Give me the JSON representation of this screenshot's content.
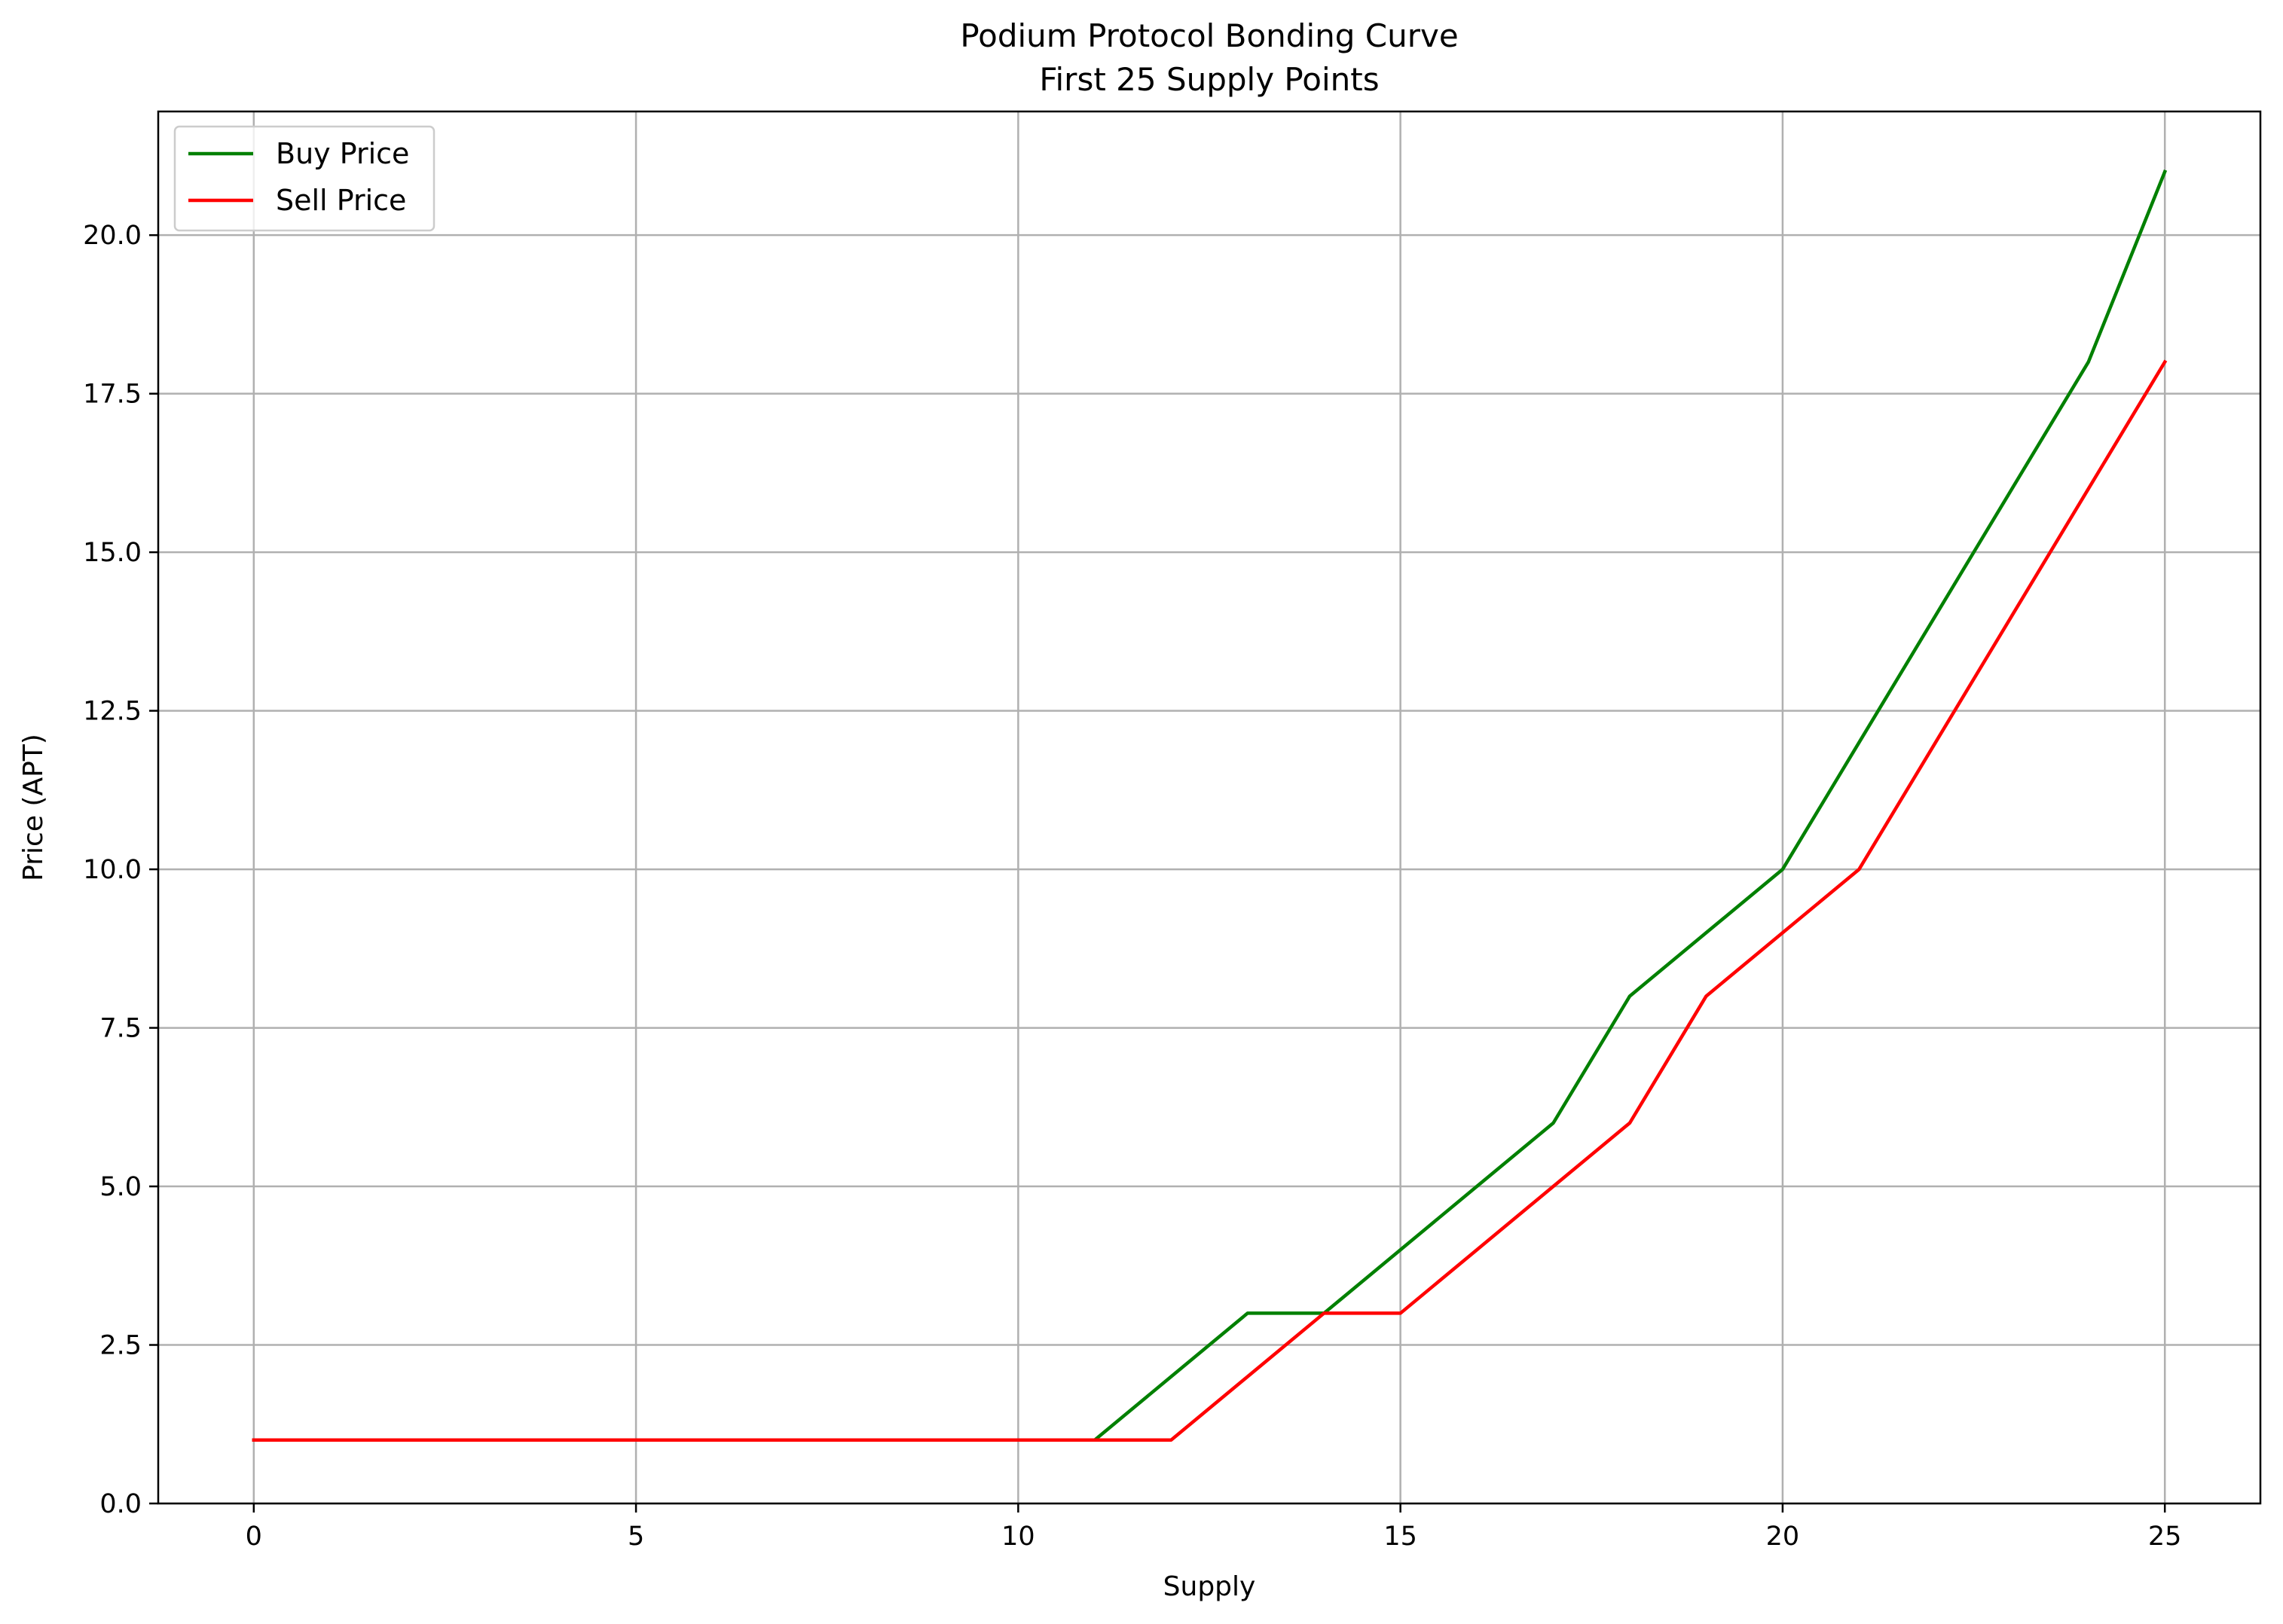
{
  "chart_data": {
    "type": "line",
    "title": "Podium Protocol Bonding Curve",
    "subtitle": "First 25 Supply Points",
    "xlabel": "Supply",
    "ylabel": "Price (APT)",
    "xlim": [
      -1.25,
      26.25
    ],
    "ylim": [
      0,
      21.95
    ],
    "x_ticks": [
      0,
      5,
      10,
      15,
      20,
      25
    ],
    "x_tick_labels": [
      "0",
      "5",
      "10",
      "15",
      "20",
      "25"
    ],
    "y_ticks": [
      0,
      2.5,
      5,
      7.5,
      10,
      12.5,
      15,
      17.5,
      20
    ],
    "y_tick_labels": [
      "0.0",
      "2.5",
      "5.0",
      "7.5",
      "10.0",
      "12.5",
      "15.0",
      "17.5",
      "20.0"
    ],
    "grid": true,
    "legend_position": "top-left",
    "x": [
      0,
      1,
      2,
      3,
      4,
      5,
      6,
      7,
      8,
      9,
      10,
      11,
      12,
      13,
      14,
      15,
      16,
      17,
      18,
      19,
      20,
      21,
      22,
      23,
      24,
      25
    ],
    "series": [
      {
        "name": "Buy Price",
        "color": "#008000",
        "values": [
          1,
          1,
          1,
          1,
          1,
          1,
          1,
          1,
          1,
          1,
          1,
          1,
          2,
          3,
          3,
          4,
          5,
          6,
          8,
          9,
          10,
          12,
          14,
          16,
          18,
          21
        ]
      },
      {
        "name": "Sell Price",
        "color": "#ff0000",
        "values": [
          1,
          1,
          1,
          1,
          1,
          1,
          1,
          1,
          1,
          1,
          1,
          1,
          1,
          2,
          3,
          3,
          4,
          5,
          6,
          8,
          9,
          10,
          12,
          14,
          16,
          18
        ]
      }
    ]
  }
}
